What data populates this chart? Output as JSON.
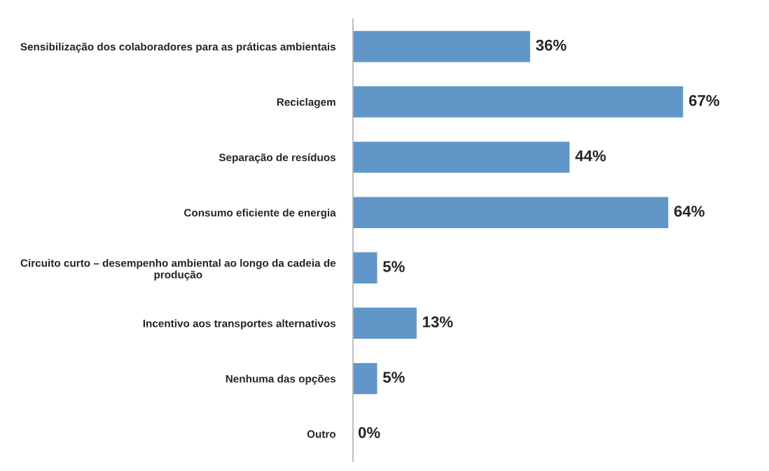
{
  "chart_data": {
    "type": "bar",
    "orientation": "horizontal",
    "categories": [
      "Sensibilização dos colaboradores para as práticas ambientais",
      "Reciclagem",
      "Separação de resíduos",
      "Consumo eficiente de energia",
      "Circuito curto – desempenho ambiental ao longo da cadeia de\nprodução",
      "Incentivo aos transportes alternativos",
      "Nenhuma das opções",
      "Outro"
    ],
    "values": [
      36,
      67,
      44,
      64,
      5,
      13,
      5,
      0
    ],
    "value_labels": [
      "36%",
      "67%",
      "44%",
      "64%",
      "5%",
      "13%",
      "5%",
      "0%"
    ],
    "color": "#6096c8",
    "tick_labels": "y",
    "grid": false,
    "legend": false
  }
}
